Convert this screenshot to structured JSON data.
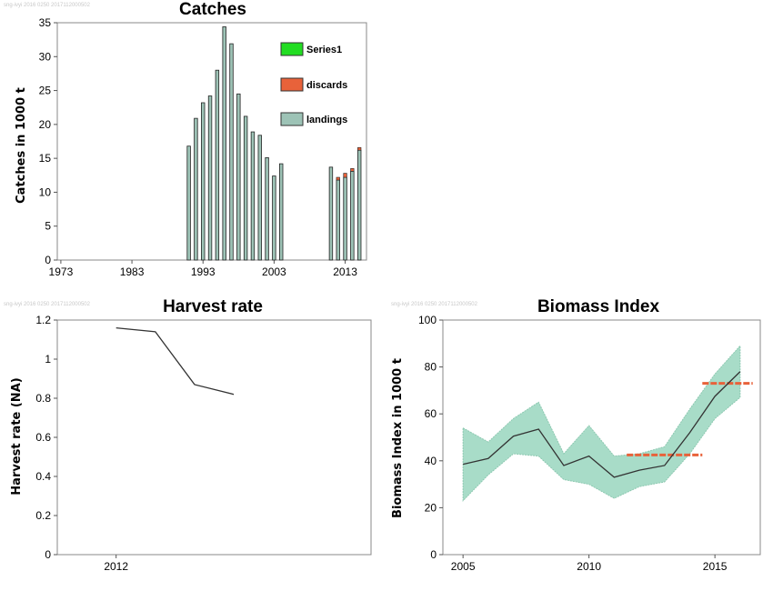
{
  "watermark": "sng-ivyi 2016 0250 2017112000502",
  "colors": {
    "landings": "#9dc3b6",
    "discards": "#e8623a",
    "series1": "#22dd22",
    "line": "#333333",
    "band": "#a8dcc8",
    "band_edge": "#8cc8b0",
    "ref": "#e8623a"
  },
  "chart_data": [
    {
      "type": "bar",
      "title": "Catches",
      "ylabel": "Catches in 1000 t",
      "xlabel": "",
      "ylim": [
        0,
        35
      ],
      "xlim": [
        1972.5,
        2016
      ],
      "x_ticks": [
        1973,
        1983,
        1993,
        2003,
        2013
      ],
      "y_ticks": [
        0,
        5,
        10,
        15,
        20,
        25,
        30,
        35
      ],
      "legend": [
        "Series1",
        "discards",
        "landings"
      ],
      "legend_placement": "top-right",
      "series": [
        {
          "name": "landings",
          "x": [
            1991,
            1992,
            1993,
            1994,
            1995,
            1996,
            1997,
            1998,
            1999,
            2000,
            2001,
            2002,
            2003,
            2004,
            2011,
            2012,
            2013,
            2014,
            2015
          ],
          "values": [
            16.8,
            20.9,
            23.2,
            24.2,
            28.0,
            34.4,
            31.9,
            24.5,
            21.2,
            18.9,
            18.4,
            15.1,
            12.4,
            14.2,
            13.7,
            11.8,
            12.2,
            13.1,
            16.2
          ]
        },
        {
          "name": "discards",
          "x": [
            1991,
            1992,
            1993,
            1994,
            1995,
            1996,
            1997,
            1998,
            1999,
            2000,
            2001,
            2002,
            2003,
            2004,
            2011,
            2012,
            2013,
            2014,
            2015
          ],
          "values": [
            0,
            0,
            0,
            0,
            0,
            0,
            0,
            0,
            0,
            0,
            0,
            0,
            0,
            0,
            0,
            0.4,
            0.6,
            0.4,
            0.4
          ]
        },
        {
          "name": "Series1",
          "x": [],
          "values": []
        }
      ]
    },
    {
      "type": "line",
      "title": "Harvest rate",
      "ylabel": "Harvest rate (NA)",
      "xlabel": "",
      "ylim": [
        0,
        1.2
      ],
      "xlim": [
        2010.5,
        2018.5
      ],
      "x_ticks": [
        2012
      ],
      "y_ticks": [
        0,
        0.2,
        0.4,
        0.6,
        0.8,
        1,
        1.2
      ],
      "x": [
        2012,
        2013,
        2014,
        2015
      ],
      "values": [
        1.16,
        1.14,
        0.87,
        0.82
      ]
    },
    {
      "type": "area",
      "title": "Biomass Index",
      "ylabel": "Biomass Index in 1000 t",
      "xlabel": "",
      "ylim": [
        0,
        100
      ],
      "xlim": [
        2004.2,
        2016.8
      ],
      "x_ticks": [
        2005,
        2010,
        2015
      ],
      "y_ticks": [
        0,
        20,
        40,
        60,
        80,
        100
      ],
      "x": [
        2005,
        2006,
        2007,
        2008,
        2009,
        2010,
        2011,
        2012,
        2013,
        2014,
        2015,
        2016
      ],
      "values": [
        38.5,
        41,
        50.5,
        53.5,
        38,
        42,
        33,
        36,
        38,
        52,
        67.5,
        78
      ],
      "upper": [
        54,
        48,
        58,
        65,
        43,
        55,
        42,
        43,
        46,
        62,
        77,
        89
      ],
      "lower": [
        23,
        34,
        43,
        42,
        32,
        30,
        24,
        29,
        31,
        43,
        58,
        67
      ],
      "reference_lines": [
        {
          "x": [
            2011.5,
            2014.5
          ],
          "value": 42.5
        },
        {
          "x": [
            2014.5,
            2016.5
          ],
          "value": 73
        }
      ]
    }
  ]
}
